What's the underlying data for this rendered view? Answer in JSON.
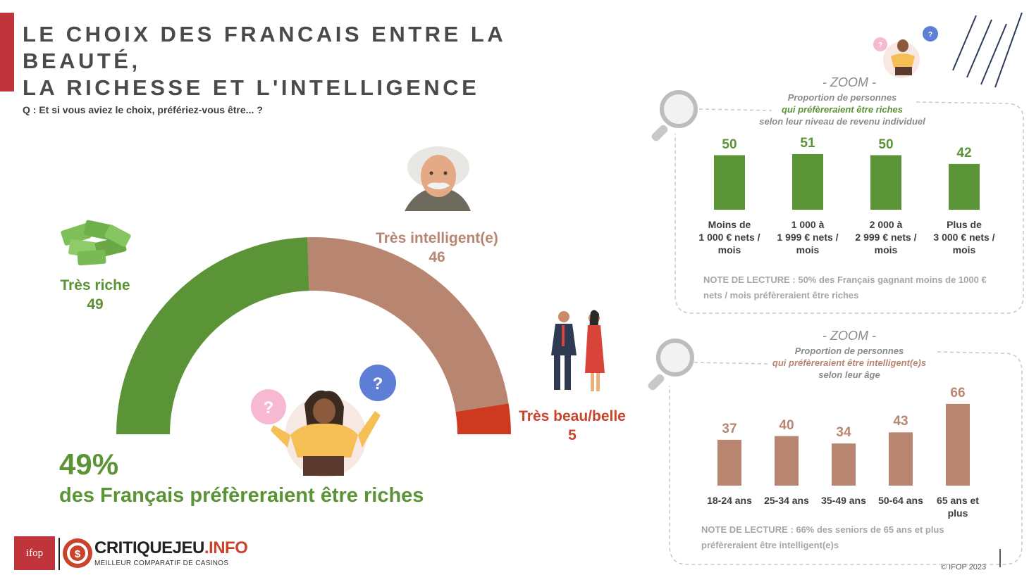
{
  "title_lines": [
    "LE CHOIX DES FRANCAIS ENTRE LA BEAUTÉ,",
    "LA RICHESSE ET L'INTELLIGENCE"
  ],
  "question": "Q : Et si vous aviez le choix, préfériez-vous être... ?",
  "colors": {
    "green": "#5b9337",
    "brown": "#b88571",
    "red": "#cd3a1f",
    "accent": "#c0353c"
  },
  "gauge": {
    "labels": {
      "riche": "Très riche",
      "intel": "Très intelligent(e)",
      "beau": "Très beau/belle"
    },
    "values": {
      "riche": "49",
      "intel": "46",
      "beau": "5"
    }
  },
  "headline": {
    "pct": "49%",
    "text": "des Français préfèreraient être riches"
  },
  "zoom1": {
    "title": "- ZOOM -",
    "line1": "Proportion de personnes",
    "line2": "qui préfèreraient être riches",
    "line3": "selon leur niveau de revenu  individuel",
    "note_lead": "NOTE DE LECTURE : ",
    "note_text": "50% des Français gagnant moins de 1000 € nets / mois préfèreraient être riches"
  },
  "zoom2": {
    "title": "- ZOOM -",
    "line1": "Proportion de personnes",
    "line2": "qui préfèreraient être intelligent(e)s",
    "line3": "selon leur âge",
    "note_lead": "NOTE DE LECTURE : ",
    "note_text": "66% des seniors de 65 ans et plus préfèreraient être intelligent(e)s"
  },
  "chart_data": [
    {
      "type": "pie",
      "categories": [
        "Très riche",
        "Très intelligent(e)",
        "Très beau/belle"
      ],
      "values": [
        49,
        46,
        5
      ]
    },
    {
      "type": "bar",
      "categories": [
        [
          "Moins de",
          "1 000 € nets /",
          "mois"
        ],
        [
          "1 000 à",
          "1 999 € nets /",
          "mois"
        ],
        [
          "2 000 à",
          "2 999 € nets /",
          "mois"
        ],
        [
          "Plus de",
          "3 000 €  nets /",
          "mois"
        ]
      ],
      "values": [
        50,
        51,
        50,
        42
      ]
    },
    {
      "type": "bar",
      "categories": [
        [
          "18-24 ans"
        ],
        [
          "25-34 ans"
        ],
        [
          "35-49 ans"
        ],
        [
          "50-64 ans"
        ],
        [
          "65 ans et",
          "plus"
        ]
      ],
      "values": [
        37,
        40,
        34,
        43,
        66
      ]
    }
  ],
  "footer": {
    "ifop": "ifop",
    "brand_main": "CRITIQUEJEU",
    "brand_suffix": ".INFO",
    "tagline": "MEILLEUR COMPARATIF DE CASINOS",
    "copyright": "© IFOP 2023"
  }
}
